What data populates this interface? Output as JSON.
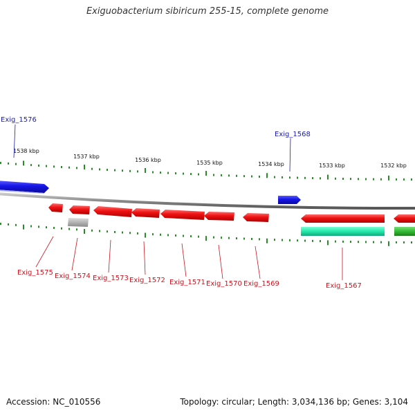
{
  "title": "Exiguobacterium sibiricum 255-15, complete genome",
  "footer": {
    "accession": "Accession: NC_010556",
    "summary": "Topology: circular; Length: 3,034,136 bp; Genes: 3,104"
  },
  "colors": {
    "forward_gene": "#1515e6",
    "reverse_gene": "#ee1111",
    "pseudo_gene": "#b3b3b3",
    "rna_cyan": "#22e8aa",
    "rna_green": "#33bb33",
    "backbone": "#8a8a8a",
    "ticks": "#2a8a2a",
    "label_forward": "#1a1aa8",
    "label_reverse": "#c8141e"
  },
  "scale": {
    "tick_labels": [
      "1538 kbp",
      "1537 kbp",
      "1536 kbp",
      "1535 kbp",
      "1534 kbp",
      "1533 kbp",
      "1532 kbp"
    ]
  },
  "genes": {
    "labels": [
      "Exig_1576",
      "Exig_1568",
      "Exig_1575",
      "Exig_1574",
      "Exig_1573",
      "Exig_1572",
      "Exig_1571",
      "Exig_1570",
      "Exig_1569",
      "Exig_1567"
    ]
  }
}
